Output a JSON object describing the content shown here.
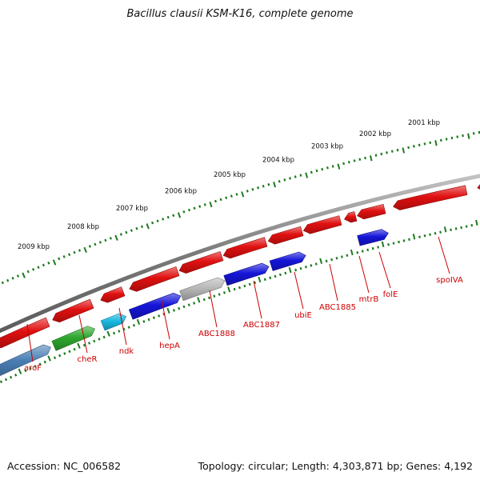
{
  "title": "Bacillus clausii KSM-K16, complete genome",
  "footer": {
    "accession": "Accession: NC_006582",
    "topology": "Topology: circular; Length: 4,303,871 bp; Genes: 4,192"
  },
  "colors": {
    "backbone": "#7a7a7a",
    "ruler": "#1e7a1e",
    "label": "#cc0000",
    "kbp_text": "#111111"
  },
  "ruler_labels": [
    "2001 kbp",
    "2002 kbp",
    "2003 kbp",
    "2004 kbp",
    "2005 kbp",
    "2006 kbp",
    "2007 kbp",
    "2008 kbp",
    "2009 kbp"
  ],
  "genes": [
    {
      "name": "aroF",
      "strand": "+",
      "color": "#4a7fb5"
    },
    {
      "name": "cheR",
      "strand": "+",
      "color": "#2fa82f"
    },
    {
      "name": "ndk",
      "strand": "+",
      "color": "#19b8e0"
    },
    {
      "name": "hepA",
      "strand": "+",
      "color": "#1515d8"
    },
    {
      "name": "ABC1888",
      "strand": "+",
      "color": "#b8b8b8"
    },
    {
      "name": "ABC1887",
      "strand": "+",
      "color": "#1515d8"
    },
    {
      "name": "ubiE",
      "strand": "+",
      "color": "#1515d8"
    },
    {
      "name": "ABC1885",
      "strand": "-",
      "color": "#e01010"
    },
    {
      "name": "mtrB",
      "strand": "-",
      "color": "#e01010"
    },
    {
      "name": "folE",
      "strand": "+",
      "color": "#1515d8"
    },
    {
      "name": "spoIVA",
      "strand": "-",
      "color": "#e01010"
    }
  ]
}
